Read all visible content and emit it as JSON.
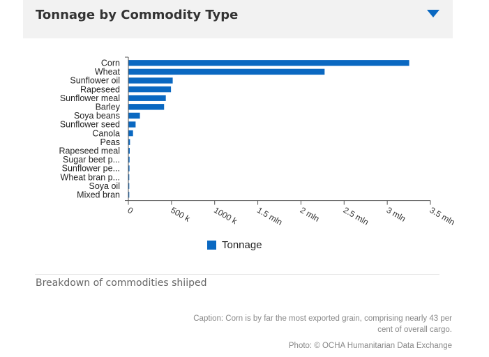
{
  "header": {
    "title": "Tonnage by Commodity Type",
    "toggle_icon": "triangle-down-icon",
    "accent": "#0a68c1"
  },
  "chart_data": {
    "type": "bar",
    "orientation": "horizontal",
    "title": "",
    "categories": [
      "Corn",
      "Wheat",
      "Sunflower oil",
      "Rapeseed",
      "Sunflower meal",
      "Barley",
      "Soya beans",
      "Sunflower seed",
      "Canola",
      "Peas",
      "Rapeseed meal",
      "Sugar beet p...",
      "Sunflower pe...",
      "Wheat bran p...",
      "Soya oil",
      "Mixed bran"
    ],
    "series": [
      {
        "name": "Tonnage",
        "color": "#0a68c1",
        "values": [
          3250000,
          2270000,
          510000,
          490000,
          430000,
          410000,
          130000,
          80000,
          50000,
          15000,
          12000,
          10000,
          9000,
          3000,
          2000,
          1000
        ]
      }
    ],
    "xlim": [
      0,
      3500000
    ],
    "ticks": [
      0,
      500000,
      1000000,
      1500000,
      2000000,
      2500000,
      3000000,
      3500000
    ],
    "tick_labels": [
      "0",
      "500 k",
      "1000 k",
      "1.5 mln",
      "2 mln",
      "2.5 mln",
      "3 mln",
      "3.5 mln"
    ],
    "xlabel": "",
    "ylabel": "",
    "legend_position": "bottom",
    "grid": false
  },
  "legend": {
    "label": "Tonnage"
  },
  "subtitle": "Breakdown of commodities shiiped",
  "caption": "Caption: Corn is by far the most exported grain, comprising nearly 43 per cent of overall cargo.",
  "photo": "Photo: © OCHA Humanitarian Data Exchange"
}
